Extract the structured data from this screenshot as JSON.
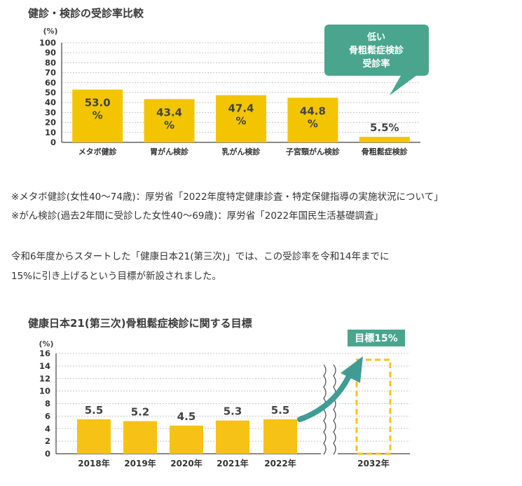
{
  "chart1": {
    "title": "健診・検診の受診率比較",
    "unit": "(%)",
    "callout": [
      "低い",
      "骨粗鬆症検診",
      "受診率"
    ],
    "chart_data": {
      "type": "bar",
      "categories": [
        "メタボ健診",
        "胃がん検診",
        "乳がん検診",
        "子宮頸がん検診",
        "骨粗鬆症検診"
      ],
      "values": [
        53.0,
        43.4,
        47.4,
        44.8,
        5.5
      ],
      "value_labels": [
        "53.0\n%",
        "43.4\n%",
        "47.4\n%",
        "44.8\n%",
        "5.5%"
      ],
      "ylim": [
        0,
        100
      ],
      "yticks": [
        0,
        10,
        20,
        30,
        40,
        50,
        60,
        70,
        80,
        90,
        100
      ],
      "grid": true,
      "colors": {
        "bar": "#f2c500",
        "callout": "#4aa58e"
      }
    }
  },
  "notes": [
    "※メタボ健診(女性40〜74歳)：厚労省「2022年度特定健康診査・特定保健指導の実施状況について」",
    "※がん検診(過去2年間に受診した女性40〜69歳)：厚労省「2022年国民生活基礎調査」",
    "令和6年度からスタートした「健康日本21(第三次)」では、この受診率を令和14年までに",
    "15%に引き上げるという目標が新設されました。"
  ],
  "chart2": {
    "title": "健康日本21(第三次)骨粗鬆症検診に関する目標",
    "unit": "(%)",
    "target_label": "目標15%",
    "chart_data": {
      "type": "bar",
      "categories": [
        "2018年",
        "2019年",
        "2020年",
        "2021年",
        "2022年",
        "2032年"
      ],
      "values": [
        5.5,
        5.2,
        4.5,
        5.3,
        5.5,
        15
      ],
      "value_labels": [
        "5.5",
        "5.2",
        "4.5",
        "5.3",
        "5.5",
        ""
      ],
      "ylim": [
        0,
        16
      ],
      "yticks": [
        0,
        2,
        4,
        6,
        8,
        10,
        12,
        14,
        16
      ],
      "grid": true,
      "target_is_dashed": true,
      "colors": {
        "bar": "#f7c216",
        "arrow": "#3f9c94",
        "target_badge": "#4aa58e"
      }
    }
  }
}
